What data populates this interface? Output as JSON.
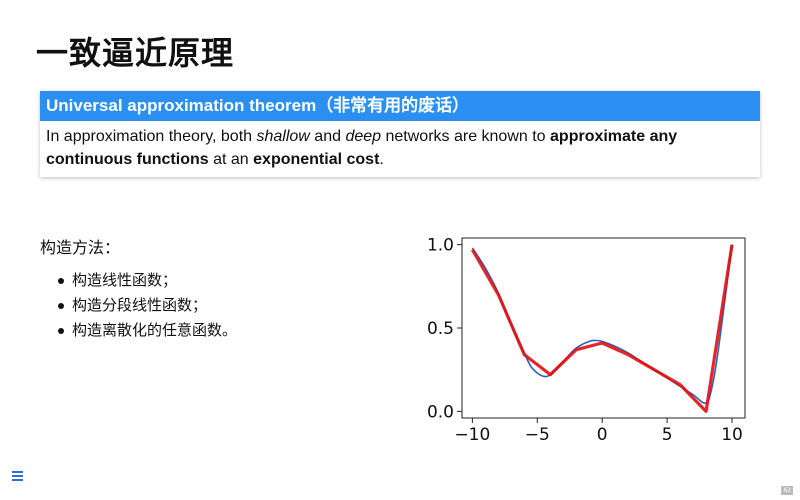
{
  "slide": {
    "title": "一致逼近原理",
    "page_number": "62"
  },
  "theorem": {
    "header": "Universal approximation theorem（非常有用的废话）",
    "body_parts": [
      {
        "text": "In approximation theory, both ",
        "style": "normal"
      },
      {
        "text": "shallow",
        "style": "italic"
      },
      {
        "text": " and ",
        "style": "normal"
      },
      {
        "text": "deep",
        "style": "italic"
      },
      {
        "text": " networks are known to ",
        "style": "normal"
      },
      {
        "text": "approximate any continuous functions",
        "style": "bold"
      },
      {
        "text": " at an ",
        "style": "normal"
      },
      {
        "text": "exponential cost",
        "style": "bold"
      },
      {
        "text": ".",
        "style": "normal"
      }
    ],
    "header_color": "#2a8ff0"
  },
  "methods": {
    "heading": "构造方法：",
    "items": [
      "构造线性函数；",
      "构造分段线性函数；",
      "构造离散化的任意函数。"
    ]
  },
  "nav": {
    "menu_icon": "menu-icon"
  },
  "chart_data": {
    "type": "line",
    "x_ticks": [
      -10,
      -5,
      0,
      5,
      10
    ],
    "y_ticks": [
      0.0,
      0.5,
      1.0
    ],
    "x_tick_labels": [
      "−10",
      "−5",
      "0",
      "5",
      "10"
    ],
    "y_tick_labels": [
      "0.0",
      "0.5",
      "1.0"
    ],
    "xlim": [
      -10.8,
      11.0
    ],
    "ylim": [
      -0.04,
      1.04
    ],
    "grid": false,
    "series": [
      {
        "style": "smooth",
        "color": "#3060c0",
        "x": [
          -10,
          -9,
          -8,
          -7,
          -6,
          -5.5,
          -5,
          -4.5,
          -4,
          -3,
          -2,
          -1,
          -0.5,
          0,
          1,
          2,
          3,
          4,
          5,
          6,
          7,
          8,
          8.5,
          9,
          10
        ],
        "y": [
          0.98,
          0.86,
          0.71,
          0.52,
          0.35,
          0.27,
          0.23,
          0.21,
          0.22,
          0.3,
          0.38,
          0.42,
          0.425,
          0.42,
          0.39,
          0.35,
          0.3,
          0.25,
          0.2,
          0.15,
          0.1,
          0.05,
          0.16,
          0.4,
          1.0
        ]
      },
      {
        "style": "piecewise",
        "color": "#e01010",
        "x": [
          -10,
          -8,
          -6,
          -4,
          -2,
          0,
          2,
          4,
          6,
          8,
          10
        ],
        "y": [
          0.97,
          0.7,
          0.34,
          0.22,
          0.37,
          0.41,
          0.34,
          0.25,
          0.16,
          0.0,
          1.0
        ]
      }
    ]
  }
}
